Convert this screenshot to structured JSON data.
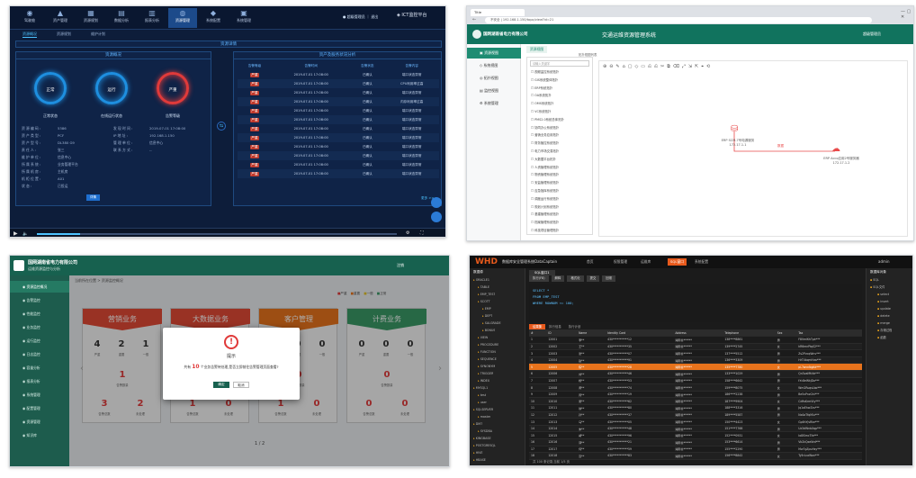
{
  "panel1": {
    "nav": [
      "驾驶舱",
      "资产管理",
      "资源规划",
      "数据分析",
      "报表分析",
      "资源管理",
      "系统配置",
      "系统管理"
    ],
    "nav_active_index": 5,
    "subtabs": [
      "资源概况",
      "资源规划",
      "维护计划"
    ],
    "subtabs_active_index": 0,
    "section_title": "资源详情",
    "left_head": "资源概况",
    "right_head": "资产及服务状况分析",
    "gauges": [
      {
        "center": "正常",
        "label": "正常状态",
        "color": "blue"
      },
      {
        "center": "运行",
        "label": "在线运行状态",
        "color": "blue"
      },
      {
        "center": "严重",
        "label": "告警等级",
        "color": "red"
      }
    ],
    "info_rows": [
      {
        "k": "资 源 编 码 :",
        "v": "5386",
        "k2": "发 现 时 间 :",
        "v2": "2019-07-01 17:08:00"
      },
      {
        "k": "资 产 类 型 :",
        "v": "PCF",
        "k2": "IP 地 址 :",
        "v2": "192.168.1.150"
      },
      {
        "k": "资 产 型 号 :",
        "v": "DL380 G9",
        "k2": "管 理 单 位 :",
        "v2": "信息中心"
      },
      {
        "k": "责 任 人 :",
        "v": "张三",
        "k2": "联 系 方 式 :",
        "v2": "--"
      },
      {
        "k": "维 护 单 位 :",
        "v": "信息中心",
        "k2": "",
        "v2": ""
      },
      {
        "k": "所 属 系 统 :",
        "v": "业务管理平台",
        "k2": "",
        "v2": ""
      },
      {
        "k": "所 属 机 房 :",
        "v": "主机房",
        "k2": "",
        "v2": ""
      },
      {
        "k": "机 柜 位 置 :",
        "v": "A01",
        "k2": "",
        "v2": ""
      },
      {
        "k": "状 态 :",
        "v": "已投运",
        "k2": "",
        "v2": ""
      }
    ],
    "detail_button": "详情",
    "table_headers": [
      "告警等级",
      "告警时间",
      "告警状态",
      "告警内容"
    ],
    "table_rows": [
      {
        "level": "严重",
        "time": "2019-07-01 17:08:00",
        "status": "已确认",
        "content": "端口状态异常"
      },
      {
        "level": "严重",
        "time": "2019-07-01 17:08:00",
        "status": "已确认",
        "content": "CPU利用率过高"
      },
      {
        "level": "严重",
        "time": "2019-07-01 17:08:00",
        "status": "已确认",
        "content": "端口状态异常"
      },
      {
        "level": "严重",
        "time": "2019-07-01 17:08:00",
        "status": "已确认",
        "content": "内存利用率过高"
      },
      {
        "level": "严重",
        "time": "2019-07-01 17:08:00",
        "status": "已确认",
        "content": "端口状态异常"
      },
      {
        "level": "严重",
        "time": "2019-07-01 17:08:00",
        "status": "已确认",
        "content": "端口状态异常"
      },
      {
        "level": "严重",
        "time": "2019-07-01 17:08:00",
        "status": "已确认",
        "content": "端口状态异常"
      },
      {
        "level": "严重",
        "time": "2019-07-01 17:08:00",
        "status": "已确认",
        "content": "端口状态异常"
      },
      {
        "level": "严重",
        "time": "2019-07-01 17:08:00",
        "status": "已确认",
        "content": "端口状态异常"
      },
      {
        "level": "严重",
        "time": "2019-07-01 17:08:00",
        "status": "已确认",
        "content": "端口状态异常"
      },
      {
        "level": "严重",
        "time": "2019-07-01 17:08:00",
        "status": "已确认",
        "content": "端口状态异常"
      },
      {
        "level": "严重",
        "time": "2019-07-01 17:08:00",
        "status": "已确认",
        "content": "端口状态异常"
      }
    ],
    "more_link": "更多 >>"
  },
  "panel2": {
    "browser_tab": "Title",
    "url": "不安全 | 192.168.1.150/topo/view?id=21",
    "company": "国网湖南省电力有限公司",
    "system_title": "交通运维资源管理系统",
    "user": "超级管理员",
    "sidebar": [
      "资源视图",
      "系统视图",
      "拓扑视图",
      "监控视图",
      "系统管理"
    ],
    "sidebar_active_index": 0,
    "page_tabs": [
      "资源视图"
    ],
    "topo_tab": "拓扑视图列表",
    "tree_search": "请输入关键字",
    "tree_items": [
      "视频监控系统拓扑",
      "GIS系统整体拓扑",
      "ERP系统拓扑",
      "OA系统拓扑",
      "OMS系统拓扑",
      "VC系统拓扑",
      "PMS2.0系统总体拓扑",
      "协同办公系统拓扑",
      "营销业务应用拓扑",
      "财务管控系统拓扑",
      "电力市场交易拓扑",
      "大数据平台拓扑",
      "人资管理系统拓扑",
      "物资管理系统拓扑",
      "安监管理系统拓扑",
      "应急指挥系统拓扑",
      "调度运行系统拓扑",
      "规划计划系统拓扑",
      "基建管理系统拓扑",
      "档案管理系统拓扑",
      "科技项目管理拓扑"
    ],
    "node_db": "ERP SCM-7号电源服务\n172.17.1.1",
    "node_cloud": "ERP Acco应用2号服务器\n172.17.1.2",
    "edge_label": "数据"
  },
  "panel3": {
    "company": "国网湖南省电力有限公司",
    "system_title": "运维资源监控与分析",
    "breadcrumb": "当前所在位置 > 资源监控概况",
    "user_area": "注销",
    "sidebar": [
      "资源监控概况",
      "告警监控",
      "性能监控",
      "业务监控",
      "运行监控",
      "日志监控",
      "容量分析",
      "报表分析",
      "系统管理",
      "配置管理",
      "资源管理",
      "知识库"
    ],
    "sidebar_active_index": 0,
    "cards": [
      {
        "title": "营销业务",
        "color": "#e24b35",
        "nums": [
          "4",
          "2",
          "1"
        ],
        "labels": [
          "严重",
          "重要",
          "一般"
        ],
        "mid": "1",
        "bottom": [
          "3",
          "2"
        ]
      },
      {
        "title": "大数据业务",
        "color": "#e24b35",
        "nums": [
          "0",
          "0",
          "0"
        ],
        "labels": [
          "严重",
          "重要",
          "一般"
        ],
        "mid": "1",
        "bottom": [
          "1",
          "0"
        ]
      },
      {
        "title": "客户管理",
        "color": "#e8731c",
        "nums": [
          "0",
          "0",
          "0"
        ],
        "labels": [
          "严重",
          "重要",
          "一般"
        ],
        "mid": "0",
        "bottom": [
          "1",
          "0"
        ]
      },
      {
        "title": "计费业务",
        "color": "#3a9a66",
        "nums": [
          "0",
          "0",
          "0"
        ],
        "labels": [
          "严重",
          "重要",
          "一般"
        ],
        "mid": "0",
        "bottom": [
          "0",
          "0"
        ]
      }
    ],
    "summary_label": "告警数量",
    "bottom_labels": [
      "告警总数",
      "未处理"
    ],
    "legend": [
      "严重",
      "重要",
      "一般",
      "正常"
    ],
    "modal": {
      "title": "提示",
      "message_pre": "共有",
      "message_count": "10",
      "message_post": "个业务告警待处理,是否立即前往告警管理页面查看?",
      "ok": "确定",
      "cancel": "取消"
    },
    "pager": "1 / 2"
  },
  "panel4": {
    "logo": "WHD",
    "product": "数据库安全管理系统DataCaptain",
    "menu": [
      "首页",
      "权限管理",
      "运维库",
      "SQL窗口",
      "系统配置"
    ],
    "menu_active_index": 3,
    "user": "admin",
    "left_title": "数据源",
    "left_tree": [
      "ORACLE1",
      "TABLE",
      "EMP_TEST",
      "SCOTT",
      "EMP",
      "DEPT",
      "SALGRADE",
      "BONUS",
      "VIEW",
      "PROCEDURE",
      "FUNCTION",
      "SEQUENCE",
      "SYNONYM",
      "TRIGGER",
      "INDEX",
      "MYSQL1",
      "test",
      "user",
      "SQLSERVER",
      "master",
      "DM7",
      "SYSDBA",
      "KINGBASE",
      "POSTGRESQL",
      "HIVE",
      "HBASE"
    ],
    "editor_tabs": [
      "SQL窗口1"
    ],
    "toolbar": [
      "执行(F8)",
      "解释",
      "格式化",
      "提交",
      "回滚"
    ],
    "sql_lines": [
      "SELECT *",
      "FROM EMP_TEST",
      "WHERE ROWNUM <= 100;"
    ],
    "result_tabs": [
      "结果集",
      "执行信息",
      "执行计划"
    ],
    "columns": [
      "#",
      "ID",
      "Name",
      "Identity Card",
      "Address",
      "Telephone",
      "Sex",
      "Tax"
    ],
    "rows": [
      [
        "1",
        "12001",
        "李**",
        "430***********12",
        "湖南省******",
        "138****8861",
        "男",
        "F8VmlKhTpk***"
      ],
      [
        "2",
        "12002",
        "王**",
        "430***********35",
        "湖南省******",
        "139****2745",
        "女",
        "kR6mnPtqS2***"
      ],
      [
        "3",
        "12003",
        "张**",
        "430***********07",
        "湖南省******",
        "137****5512",
        "男",
        "Zs2PvcqWnv***"
      ],
      [
        "4",
        "12004",
        "赵**",
        "430***********91",
        "湖南省******",
        "136****3309",
        "男",
        "HrT4bqmYxw***"
      ],
      [
        "5",
        "12005",
        "陈**",
        "430***********28",
        "湖南省******",
        "135****7780",
        "女",
        "pL7wcnNgKd***"
      ],
      [
        "6",
        "12006",
        "刘**",
        "430***********46",
        "湖南省******",
        "133****1029",
        "男",
        "Qn3vaMfrXe***"
      ],
      [
        "7",
        "12007",
        "杨**",
        "430***********53",
        "湖南省******",
        "158****6642",
        "男",
        "tYc8eWkjDa***"
      ],
      [
        "8",
        "12008",
        "黄**",
        "430***********74",
        "湖南省******",
        "159****8075",
        "女",
        "Wm2RuqsLbo***"
      ],
      [
        "9",
        "12009",
        "周**",
        "430***********19",
        "湖南省******",
        "186****2238",
        "男",
        "Be5xPnzGhi***"
      ],
      [
        "10",
        "12010",
        "吴**",
        "430***********62",
        "湖南省******",
        "187****9904",
        "女",
        "Cd9sKrmVty***"
      ],
      [
        "11",
        "12011",
        "徐**",
        "430***********80",
        "湖南省******",
        "188****3316",
        "男",
        "Jq1oEhwZcs***"
      ],
      [
        "12",
        "12012",
        "孙**",
        "430***********37",
        "湖南省******",
        "189****5587",
        "男",
        "Nx4aTfqMlu***"
      ],
      [
        "13",
        "12013",
        "马**",
        "430***********05",
        "湖南省******",
        "150****4423",
        "女",
        "Gp6hYjvRke***"
      ],
      [
        "14",
        "12014",
        "朱**",
        "430***********48",
        "湖南省******",
        "151****7768",
        "男",
        "Uz3dWnbXqp***"
      ],
      [
        "15",
        "12015",
        "胡**",
        "430***********96",
        "湖南省******",
        "152****0931",
        "女",
        "Io8lSmcTfa***"
      ],
      [
        "16",
        "12016",
        "郭**",
        "430***********21",
        "湖南省******",
        "153****6614",
        "男",
        "Vb2kQxeNrd***"
      ],
      [
        "17",
        "12017",
        "何**",
        "430***********59",
        "湖南省******",
        "155****2290",
        "男",
        "Mw7gZpuHsy***"
      ],
      [
        "18",
        "12018",
        "高**",
        "430***********83",
        "湖南省******",
        "156****8842",
        "女",
        "Ty5rLcaWon***"
      ]
    ],
    "selected_row_index": 4,
    "status": "共 100 条记录,当前 1/5 页",
    "right_title": "数据库对象",
    "right_tree": [
      "SQL",
      "SQL文件",
      "select",
      "insert",
      "update",
      "delete",
      "merge",
      "存储过程",
      "函数"
    ]
  }
}
